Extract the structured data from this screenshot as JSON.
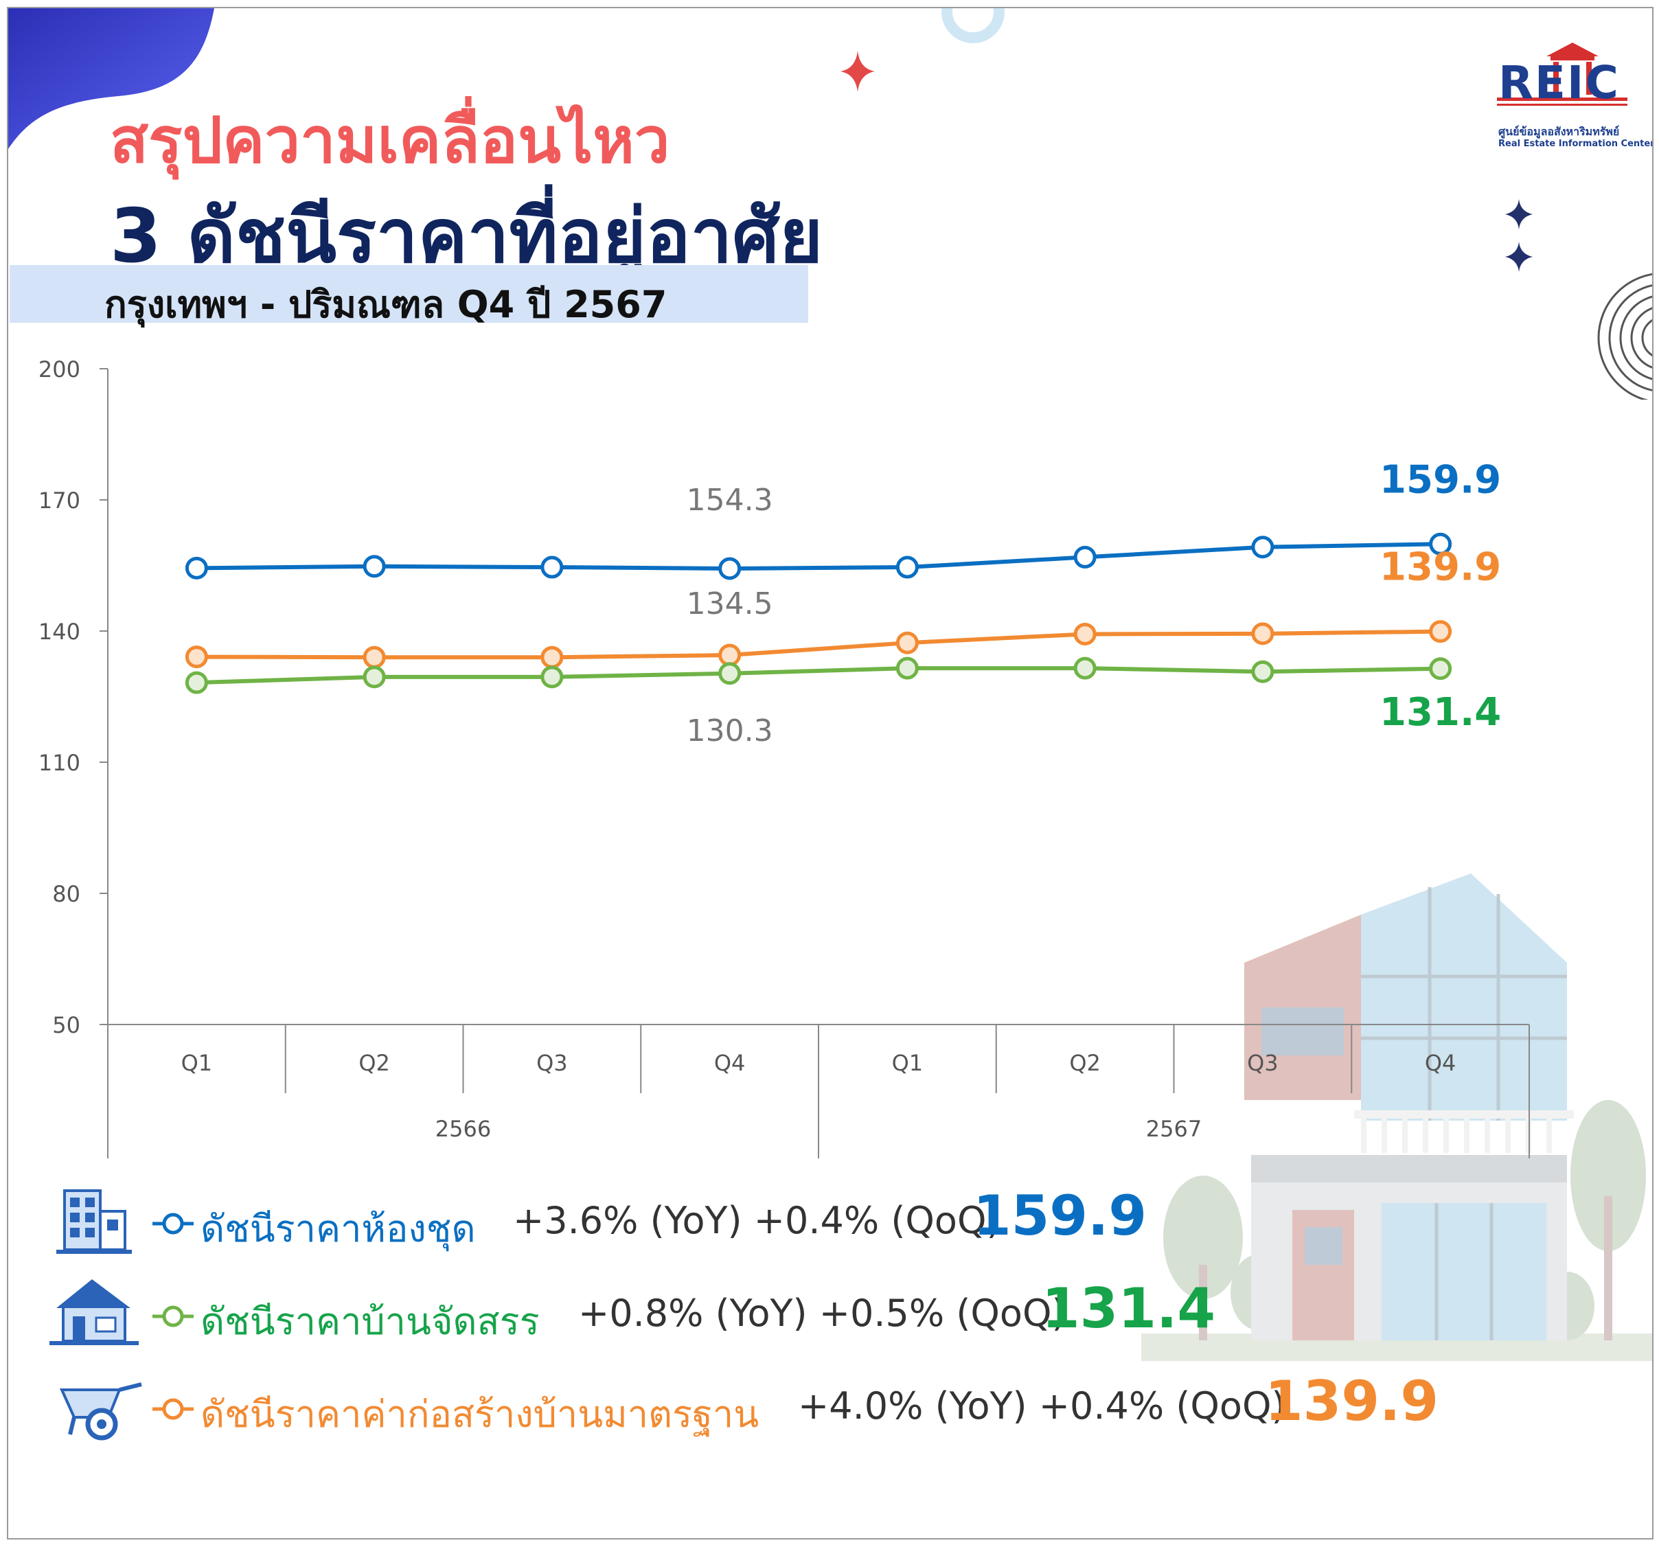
{
  "header": {
    "title_line1": "สรุปความเคลื่อนไหว",
    "title_line2": "3 ดัชนีราคาที่อยู่อาศัย",
    "subtitle": "กรุงเทพฯ - ปริมณฑล Q4 ปี 2567"
  },
  "logo": {
    "text": "REIC",
    "thai_name": "ศูนย์ข้อมูลอสังหาริมทรัพย์",
    "english_name": "Real Estate Information Center"
  },
  "colors": {
    "condo": "#0a6fc2",
    "house": "#6fb346",
    "construction": "#f28a32",
    "house_value": "#16a34a",
    "title_red": "#f15a5a",
    "title_navy": "#10255e"
  },
  "chart_data": {
    "type": "line",
    "categories": [
      "Q1",
      "Q2",
      "Q3",
      "Q4",
      "Q1",
      "Q2",
      "Q3",
      "Q4"
    ],
    "year_groups": [
      {
        "label": "2566",
        "span": 4
      },
      {
        "label": "2567",
        "span": 4
      }
    ],
    "ylim": [
      50,
      200
    ],
    "yticks": [
      50,
      80,
      110,
      140,
      170,
      200
    ],
    "series": [
      {
        "name": "ดัชนีราคาห้องชุด",
        "color": "#0a6fc2",
        "values": [
          154.4,
          154.8,
          154.6,
          154.3,
          154.6,
          156.9,
          159.2,
          159.9
        ]
      },
      {
        "name": "ดัชนีราคาค่าก่อสร้างบ้านมาตรฐาน",
        "color": "#f28a32",
        "values": [
          134.1,
          134.0,
          134.0,
          134.5,
          137.3,
          139.3,
          139.4,
          139.9
        ]
      },
      {
        "name": "ดัชนีราคาบ้านจัดสรร",
        "color": "#6fb346",
        "values": [
          128.2,
          129.5,
          129.5,
          130.3,
          131.5,
          131.5,
          130.7,
          131.4
        ]
      }
    ],
    "annotations": [
      {
        "text": "154.3",
        "series": 0,
        "index": 3
      },
      {
        "text": "134.5",
        "series": 1,
        "index": 3
      },
      {
        "text": "130.3",
        "series": 2,
        "index": 3
      },
      {
        "text": "159.9",
        "series": 0,
        "index": 7
      },
      {
        "text": "139.9",
        "series": 1,
        "index": 7
      },
      {
        "text": "131.4",
        "series": 2,
        "index": 7
      }
    ]
  },
  "legend": [
    {
      "label": "ดัชนีราคาห้องชุด",
      "change": "+3.6% (YoY) +0.4% (QoQ)",
      "value": "159.9",
      "icon": "condo-building-icon"
    },
    {
      "label": "ดัชนีราคาบ้านจัดสรร",
      "change": "+0.8% (YoY) +0.5% (QoQ)",
      "value": "131.4",
      "icon": "house-icon"
    },
    {
      "label": "ดัชนีราคาค่าก่อสร้างบ้านมาตรฐาน",
      "change": "+4.0% (YoY) +0.4% (QoQ)",
      "value": "139.9",
      "icon": "wheelbarrow-icon"
    }
  ]
}
